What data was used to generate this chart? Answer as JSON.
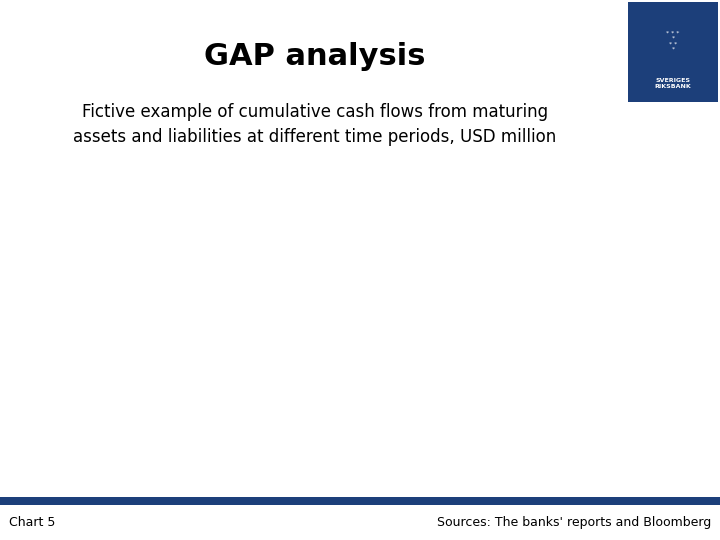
{
  "title": "GAP analysis",
  "subtitle": "Fictive example of cumulative cash flows from maturing\nassets and liabilities at different time periods, USD million",
  "chart_label": "Chart 5",
  "source_text": "Sources: The banks' reports and Bloomberg",
  "title_fontsize": 22,
  "subtitle_fontsize": 12,
  "footer_fontsize": 9,
  "bg_color": "#ffffff",
  "footer_bar_color": "#1c3f7a",
  "logo_bg_color": "#1c3f7a",
  "title_font_weight": "bold",
  "subtitle_font_weight": "normal"
}
